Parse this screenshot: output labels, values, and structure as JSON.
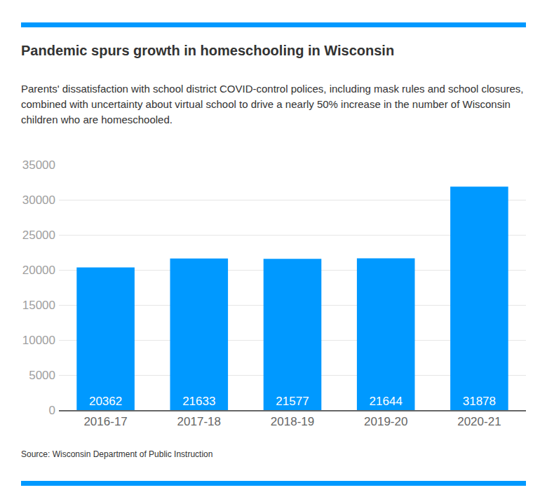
{
  "chart_data": {
    "type": "bar",
    "title": "Pandemic spurs growth in homeschooling in Wisconsin",
    "subtitle": "Parents' dissatisfaction with school district COVID-control polices, including mask rules and school closures, combined with uncertainty about virtual school to drive a nearly 50% increase in the number of Wisconsin children who are homeschooled.",
    "source": "Source: Wisconsin Department of Public Instruction",
    "categories": [
      "2016-17",
      "2017-18",
      "2018-19",
      "2019-20",
      "2020-21"
    ],
    "values": [
      20362,
      21633,
      21577,
      21644,
      31878
    ],
    "color": "#0099ff",
    "ylim": [
      0,
      35000
    ],
    "yticks": [
      0,
      5000,
      10000,
      15000,
      20000,
      25000,
      30000,
      35000
    ],
    "grid": true,
    "data_labels": true
  }
}
